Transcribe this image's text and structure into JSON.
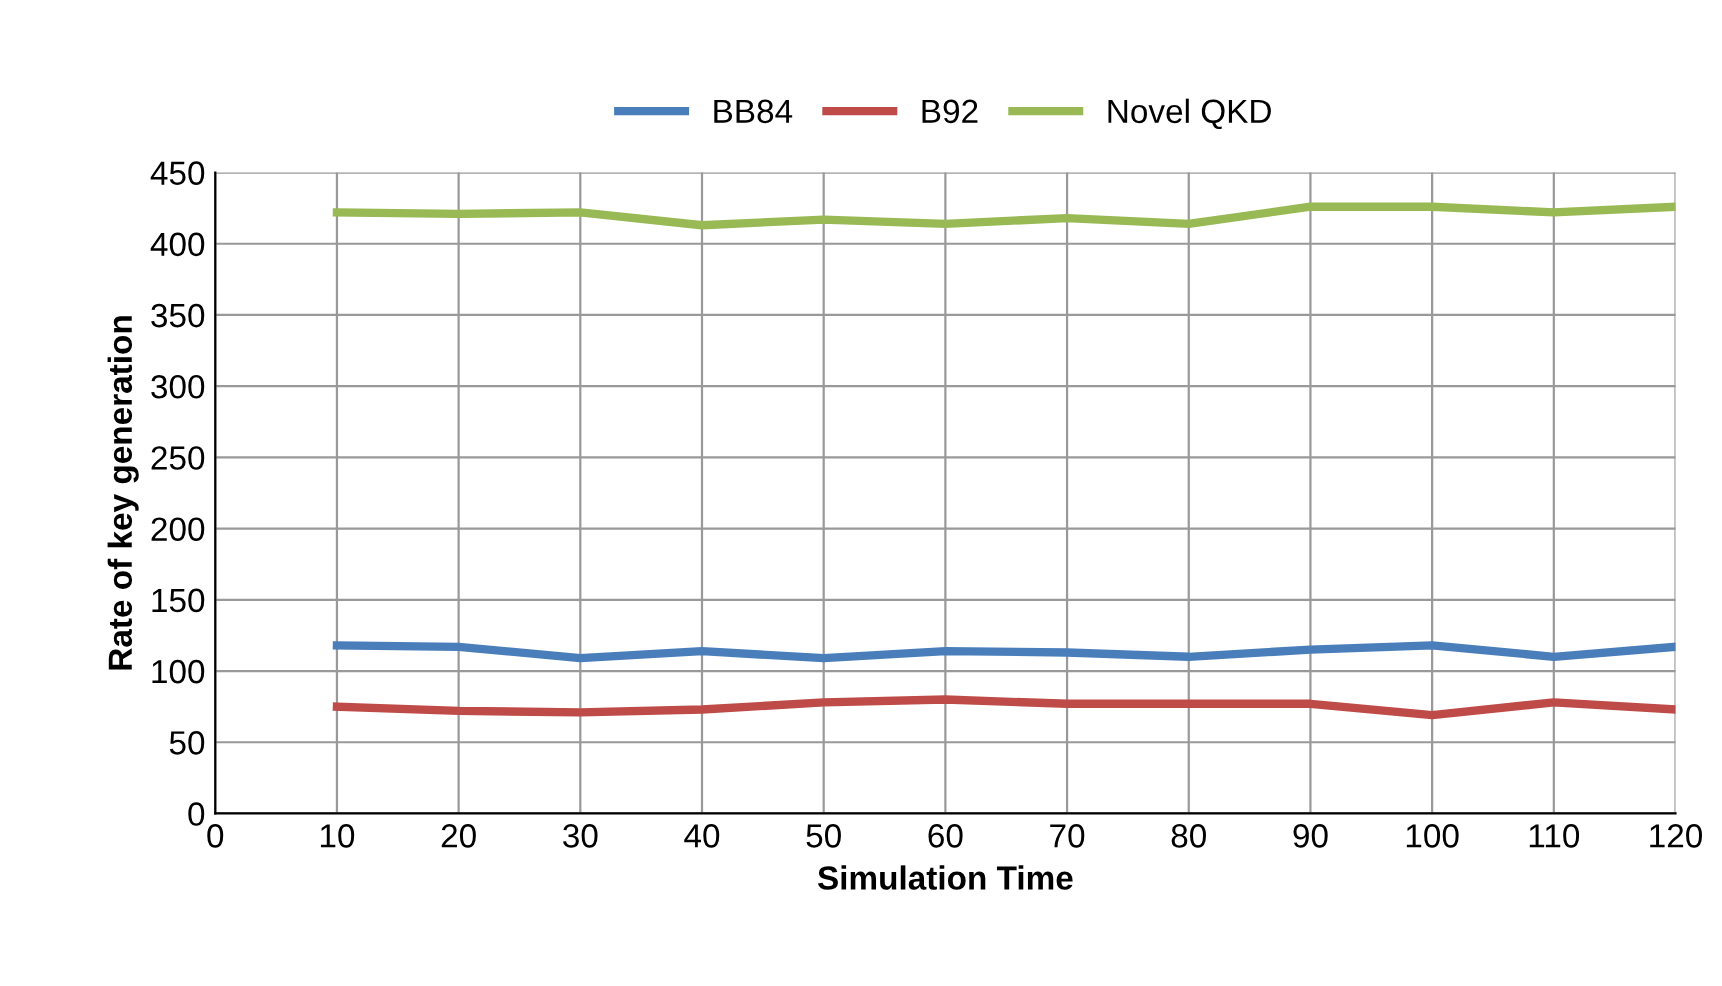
{
  "chart_data": {
    "type": "line",
    "xlabel": "Simulation Time",
    "ylabel": "Rate of key generation",
    "x": [
      10,
      20,
      30,
      40,
      50,
      60,
      70,
      80,
      90,
      100,
      110,
      120
    ],
    "series": [
      {
        "name": "BB84",
        "color": "#4a7ebb",
        "values": [
          118,
          117,
          109,
          114,
          109,
          114,
          113,
          110,
          115,
          118,
          110,
          117
        ]
      },
      {
        "name": "B92",
        "color": "#be4b48",
        "values": [
          75,
          72,
          71,
          73,
          78,
          80,
          77,
          77,
          77,
          69,
          78,
          73
        ]
      },
      {
        "name": "Novel QKD",
        "color": "#98b954",
        "values": [
          422,
          421,
          422,
          413,
          417,
          414,
          418,
          414,
          426,
          426,
          422,
          426
        ]
      }
    ],
    "xlim": [
      0,
      120
    ],
    "xticks": [
      0,
      10,
      20,
      30,
      40,
      50,
      60,
      70,
      80,
      90,
      100,
      110,
      120
    ],
    "ylim": [
      0,
      450
    ],
    "yticks": [
      0,
      50,
      100,
      150,
      200,
      250,
      300,
      350,
      400,
      450
    ],
    "grid": true,
    "legend": "top",
    "marker": "none",
    "line_style": "solid"
  }
}
